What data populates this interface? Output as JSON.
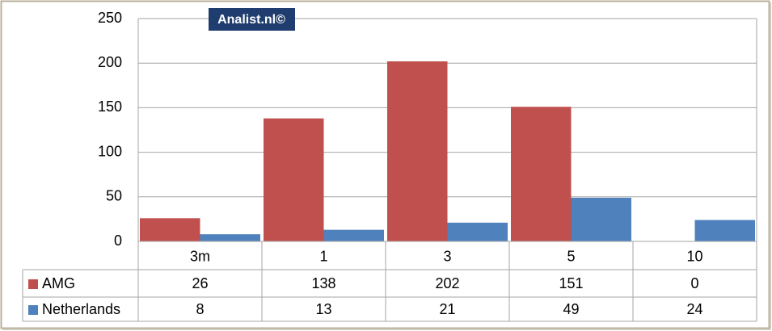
{
  "chart_data": {
    "type": "bar",
    "watermark": "Analist.nl©",
    "categories": [
      "3m",
      "1",
      "3",
      "5",
      "10"
    ],
    "series": [
      {
        "name": "AMG",
        "color": "#c0504d",
        "values": [
          26,
          138,
          202,
          151,
          0
        ]
      },
      {
        "name": "Netherlands",
        "color": "#4f81bd",
        "values": [
          8,
          13,
          21,
          49,
          24
        ]
      }
    ],
    "ylim": [
      0,
      250
    ],
    "yticks": [
      0,
      50,
      100,
      150,
      200,
      250
    ],
    "grid": true
  }
}
